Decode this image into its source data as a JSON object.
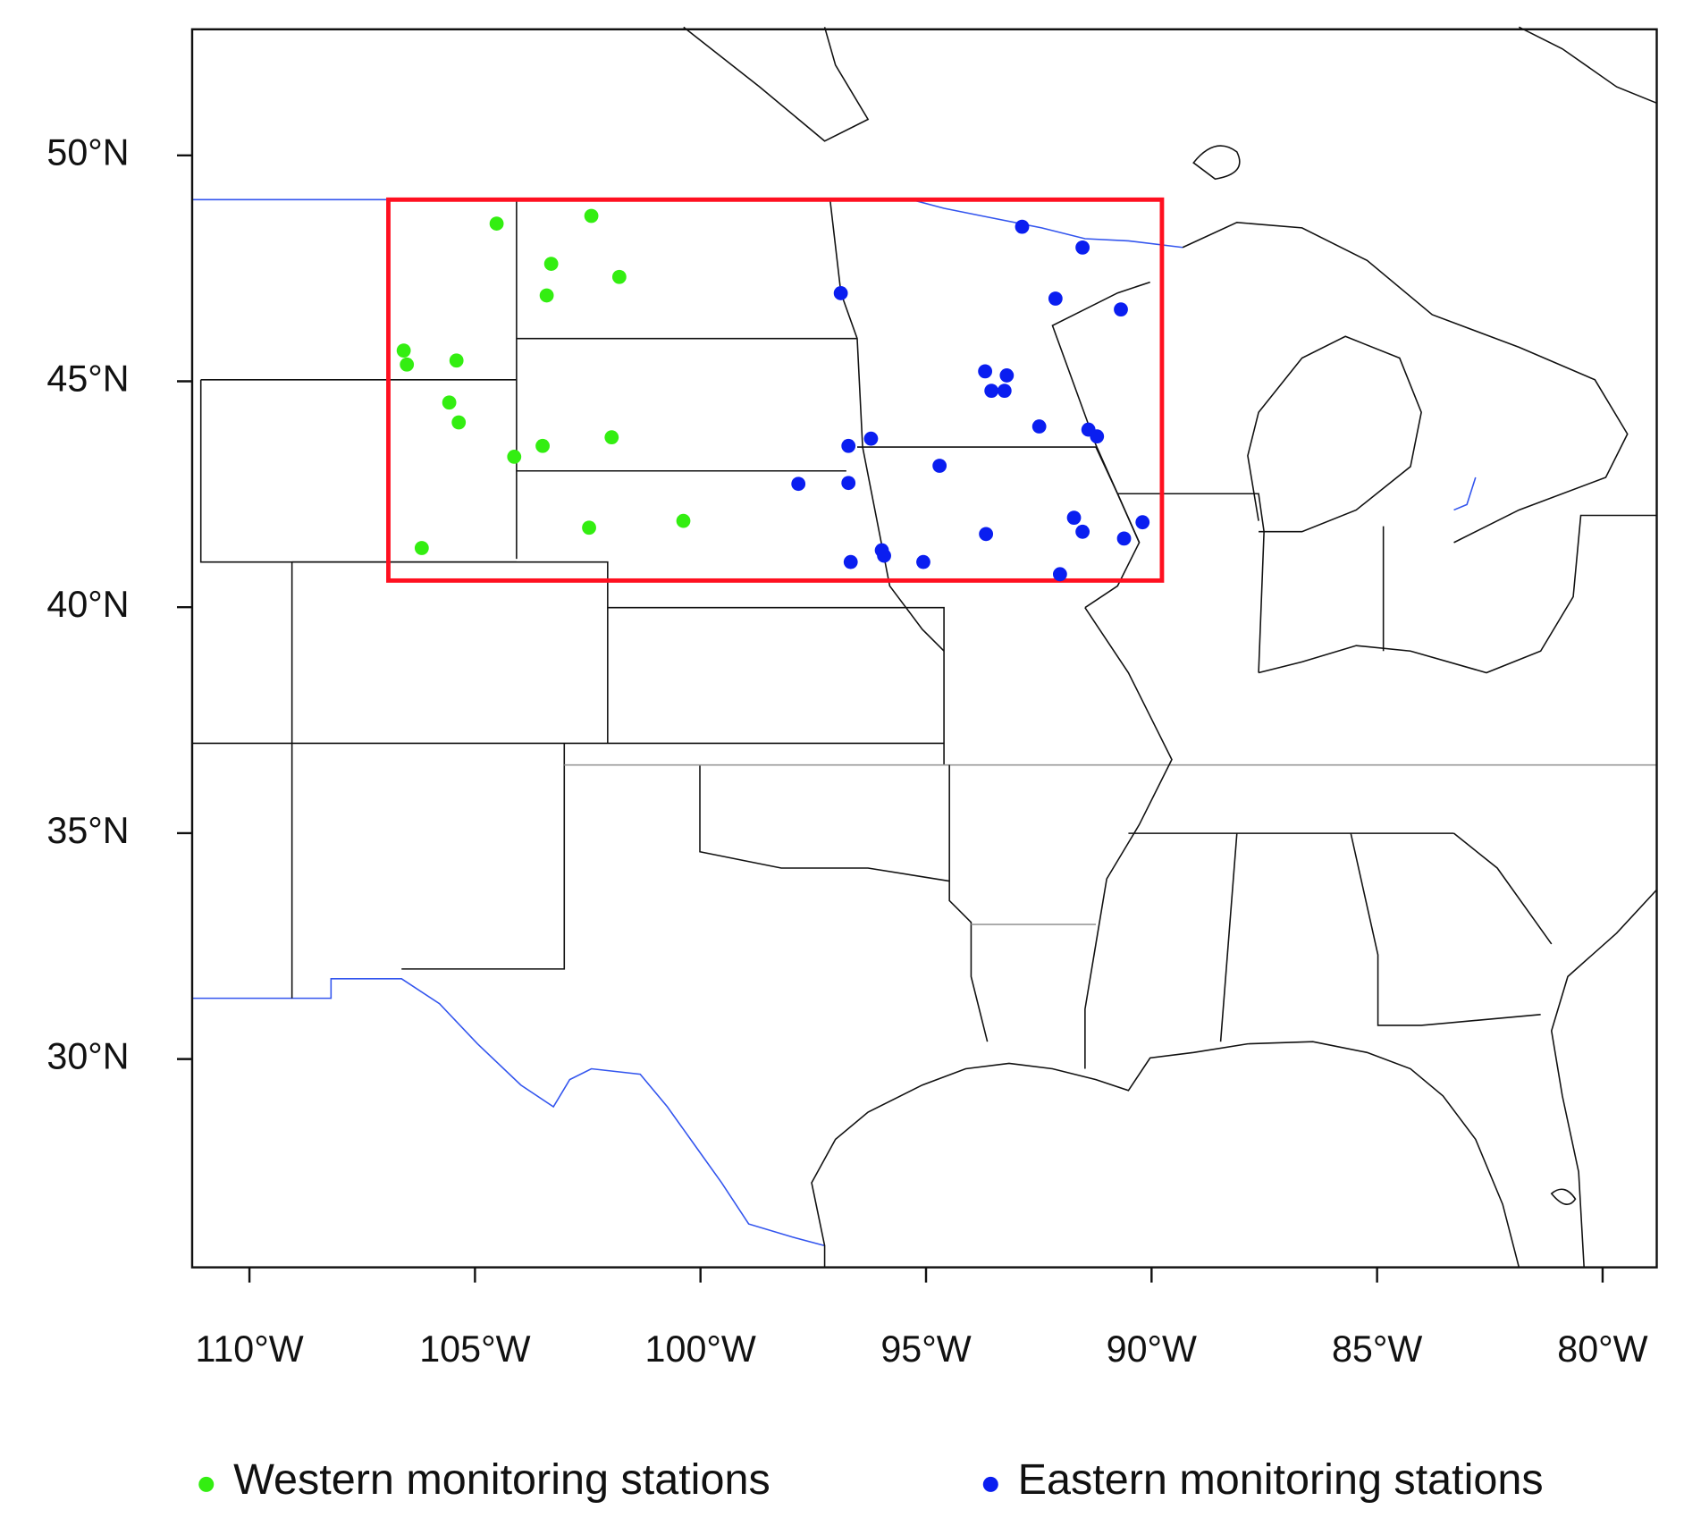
{
  "chart_data": {
    "type": "scatter",
    "xlim": [
      -111.27,
      -78.8
    ],
    "ylim": [
      25.39,
      52.79
    ],
    "xticks": [
      {
        "value": -110,
        "label": "110°W"
      },
      {
        "value": -105,
        "label": "105°W"
      },
      {
        "value": -100,
        "label": "100°W"
      },
      {
        "value": -95,
        "label": "95°W"
      },
      {
        "value": -90,
        "label": "90°W"
      },
      {
        "value": -85,
        "label": "85°W"
      },
      {
        "value": -80,
        "label": "80°W"
      }
    ],
    "yticks": [
      {
        "value": 30,
        "label": "30°N"
      },
      {
        "value": 35,
        "label": "35°N"
      },
      {
        "value": 40,
        "label": "40°N"
      },
      {
        "value": 45,
        "label": "45°N"
      },
      {
        "value": 50,
        "label": "50°N"
      }
    ],
    "legend": "bottom",
    "region": {
      "color": "#ff1020",
      "x": [
        -106.92,
        -89.77
      ],
      "y": [
        40.59,
        49.02
      ]
    },
    "series": [
      {
        "name": "Western monitoring stations",
        "color": "#33ee11",
        "x": [
          -104.52,
          -102.42,
          -103.31,
          -101.8,
          -103.41,
          -106.58,
          -106.51,
          -105.41,
          -105.57,
          -105.36,
          -104.13,
          -103.5,
          -101.97,
          -102.47,
          -100.38,
          -106.18
        ],
        "values": [
          48.49,
          48.66,
          47.6,
          47.31,
          46.9,
          45.68,
          45.37,
          45.46,
          44.53,
          44.09,
          43.33,
          43.57,
          43.76,
          41.76,
          41.91,
          41.31
        ]
      },
      {
        "name": "Eastern monitoring stations",
        "color": "#0a1ef0",
        "x": [
          -92.87,
          -91.53,
          -96.89,
          -92.13,
          -90.68,
          -93.69,
          -93.21,
          -93.55,
          -93.26,
          -92.49,
          -91.4,
          -91.21,
          -96.72,
          -96.22,
          -94.7,
          -97.83,
          -96.72,
          -91.72,
          -91.53,
          -93.67,
          -90.2,
          -90.61,
          -96.67,
          -95.98,
          -95.93,
          -95.06,
          -92.03
        ],
        "values": [
          48.42,
          47.96,
          46.95,
          46.83,
          46.59,
          45.22,
          45.13,
          44.79,
          44.79,
          44.0,
          43.93,
          43.78,
          43.57,
          43.73,
          43.13,
          42.73,
          42.75,
          41.98,
          41.67,
          41.62,
          41.88,
          41.52,
          41.0,
          41.26,
          41.14,
          41.0,
          40.73
        ]
      }
    ]
  }
}
